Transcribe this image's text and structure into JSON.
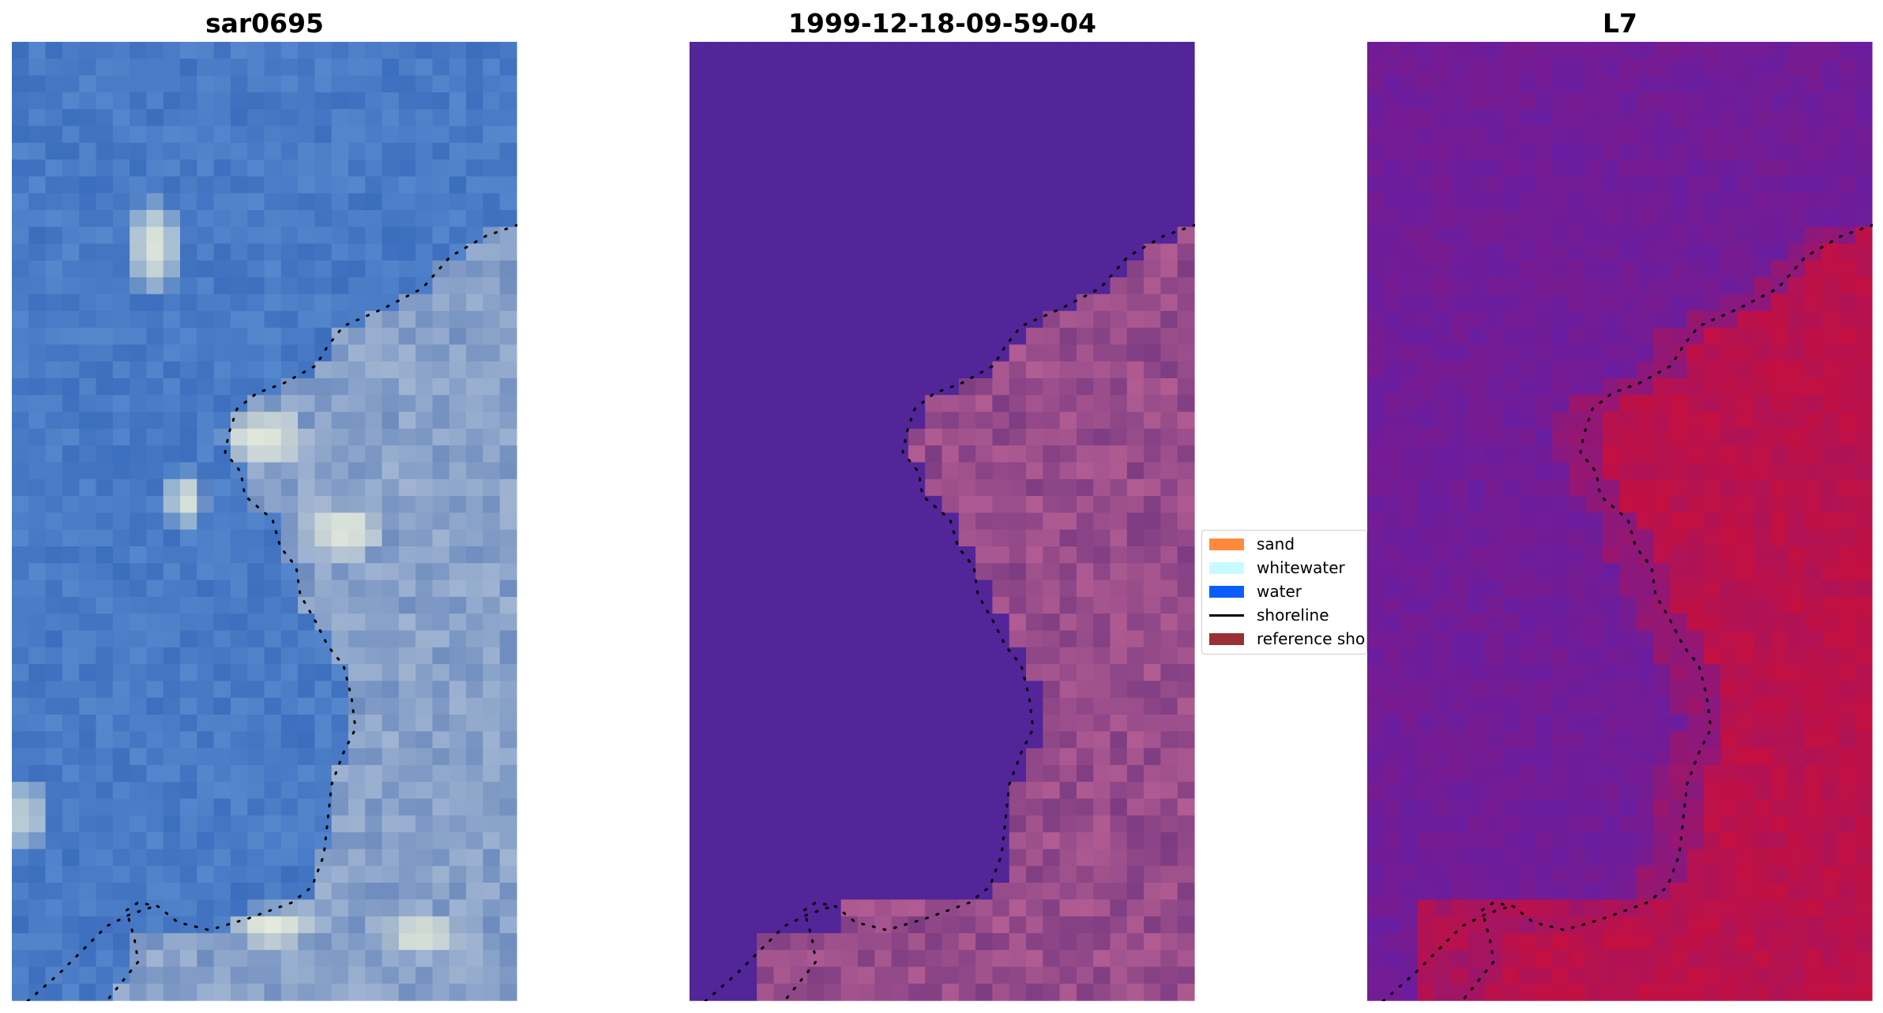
{
  "panels": [
    {
      "title": "sar0695"
    },
    {
      "title": "1999-12-18-09-59-04"
    },
    {
      "title": "L7"
    }
  ],
  "legend": {
    "items": [
      {
        "label": "sand",
        "color": "#ff8a3d",
        "kind": "patch"
      },
      {
        "label": "whitewater",
        "color": "#c8fbff",
        "kind": "patch"
      },
      {
        "label": "water",
        "color": "#0a5dfa",
        "kind": "patch"
      },
      {
        "label": "shoreline",
        "color": "#000000",
        "kind": "line"
      },
      {
        "label": "reference shoreline",
        "color": "#9a3033",
        "kind": "patch"
      }
    ]
  },
  "colors": {
    "water_rgb": "#4a7ec8",
    "land_rgb": "#8fa8c8",
    "class_background": "#52259a",
    "class_land": "#8b4a8a",
    "index_low": "#6a1aa6",
    "index_high": "#c4103c"
  }
}
